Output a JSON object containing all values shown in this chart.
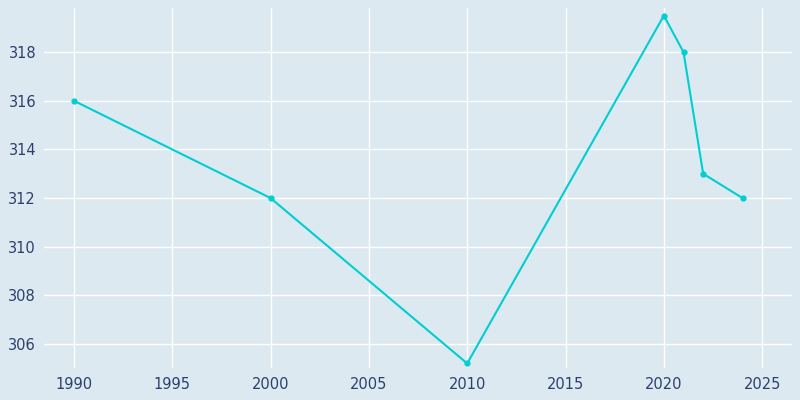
{
  "years": [
    1990,
    2000,
    2010,
    2020,
    2021,
    2022,
    2024
  ],
  "population": [
    316,
    312,
    305.2,
    319.5,
    318,
    313,
    312
  ],
  "line_color": "#00CED1",
  "marker": "o",
  "marker_size": 3.5,
  "bg_color": "#dce9f1",
  "plot_bg_color": "#dce9f1",
  "grid_color": "#ffffff",
  "xlim": [
    1988.5,
    2026.5
  ],
  "ylim": [
    305.0,
    319.8
  ],
  "xticks": [
    1990,
    1995,
    2000,
    2005,
    2010,
    2015,
    2020,
    2025
  ],
  "yticks": [
    306,
    308,
    310,
    312,
    314,
    316,
    318
  ],
  "tick_label_color": "#2e3f6e",
  "tick_fontsize": 10.5,
  "figsize": [
    8.0,
    4.0
  ],
  "dpi": 100,
  "linewidth": 1.5
}
